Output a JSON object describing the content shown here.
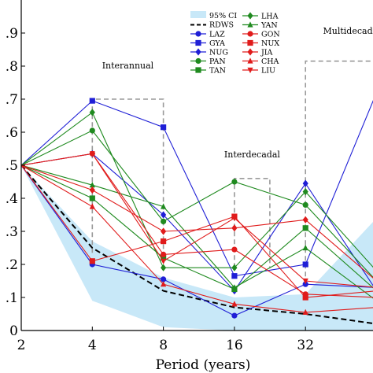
{
  "chart_data": {
    "type": "line",
    "xlabel": "Period (years)",
    "x": [
      2,
      4,
      8,
      16,
      32,
      64
    ],
    "x_tick_labels": [
      "2",
      "4",
      "8",
      "16",
      "32"
    ],
    "x_scale": "log2",
    "ylim": [
      0,
      1.0
    ],
    "y_ticks": [
      0,
      0.1,
      0.2,
      0.3,
      0.4,
      0.5,
      0.6,
      0.7,
      0.8,
      0.9
    ],
    "y_tick_labels": [
      "0",
      ".1",
      ".2",
      ".3",
      ".4",
      ".5",
      ".6",
      ".7",
      ".8",
      ".9"
    ],
    "ci_band": {
      "name": "95% CI",
      "color": "#c8e8f8",
      "upper": [
        0.5,
        0.27,
        0.16,
        0.1,
        0.11,
        0.34
      ],
      "lower": [
        0.5,
        0.09,
        0.01,
        0.0,
        0.0,
        0.0
      ]
    },
    "rdws": {
      "name": "RDWS",
      "color": "#000000",
      "values": [
        0.5,
        0.25,
        0.12,
        0.07,
        0.05,
        0.02
      ]
    },
    "series": [
      {
        "name": "LAZ",
        "color": "#1f1fd6",
        "marker": "circle",
        "values": [
          0.5,
          0.2,
          0.155,
          0.045,
          0.14,
          0.13
        ]
      },
      {
        "name": "GYA",
        "color": "#1f1fd6",
        "marker": "square",
        "values": [
          0.5,
          0.695,
          0.615,
          0.165,
          0.2,
          0.72
        ]
      },
      {
        "name": "NUG",
        "color": "#1f1fd6",
        "marker": "diamond",
        "values": [
          0.5,
          0.535,
          0.35,
          0.12,
          0.445,
          0.12
        ]
      },
      {
        "name": "PAN",
        "color": "#1f8a1f",
        "marker": "circle",
        "values": [
          0.5,
          0.605,
          0.33,
          0.45,
          0.38,
          0.15
        ]
      },
      {
        "name": "TAN",
        "color": "#1f8a1f",
        "marker": "square",
        "values": [
          0.5,
          0.4,
          0.22,
          0.125,
          0.31,
          0.12
        ]
      },
      {
        "name": "LHA",
        "color": "#1f8a1f",
        "marker": "diamond",
        "values": [
          0.5,
          0.66,
          0.19,
          0.19,
          0.42,
          0.18
        ]
      },
      {
        "name": "YAN",
        "color": "#1f8a1f",
        "marker": "triangle-up",
        "values": [
          0.5,
          0.44,
          0.375,
          0.13,
          0.25,
          0.09
        ]
      },
      {
        "name": "GON",
        "color": "#e01b1b",
        "marker": "circle",
        "values": [
          0.5,
          0.535,
          0.23,
          0.245,
          0.11,
          0.1
        ]
      },
      {
        "name": "NUX",
        "color": "#e01b1b",
        "marker": "square",
        "values": [
          0.5,
          0.21,
          0.27,
          0.345,
          0.1,
          0.12
        ]
      },
      {
        "name": "JIA",
        "color": "#e01b1b",
        "marker": "diamond",
        "values": [
          0.5,
          0.425,
          0.3,
          0.31,
          0.335,
          0.15
        ]
      },
      {
        "name": "CHA",
        "color": "#e01b1b",
        "marker": "triangle-up",
        "values": [
          0.5,
          0.375,
          0.14,
          0.08,
          0.055,
          0.07
        ]
      },
      {
        "name": "LIU",
        "color": "#e01b1b",
        "marker": "triangle-down",
        "values": [
          0.5,
          0.535,
          0.21,
          0.34,
          0.15,
          0.13
        ]
      }
    ],
    "annotations": [
      {
        "label": "Interannual",
        "x_range": [
          4,
          8
        ],
        "y_range": [
          0.235,
          0.7
        ]
      },
      {
        "label": "Interdecadal",
        "x_range": [
          16,
          22.6
        ],
        "y_range": [
          0.19,
          0.46
        ]
      },
      {
        "label": "Multidecadal",
        "x_range": [
          32,
          64
        ],
        "y_range": [
          0.14,
          0.815
        ]
      }
    ],
    "legend_position": "top"
  }
}
